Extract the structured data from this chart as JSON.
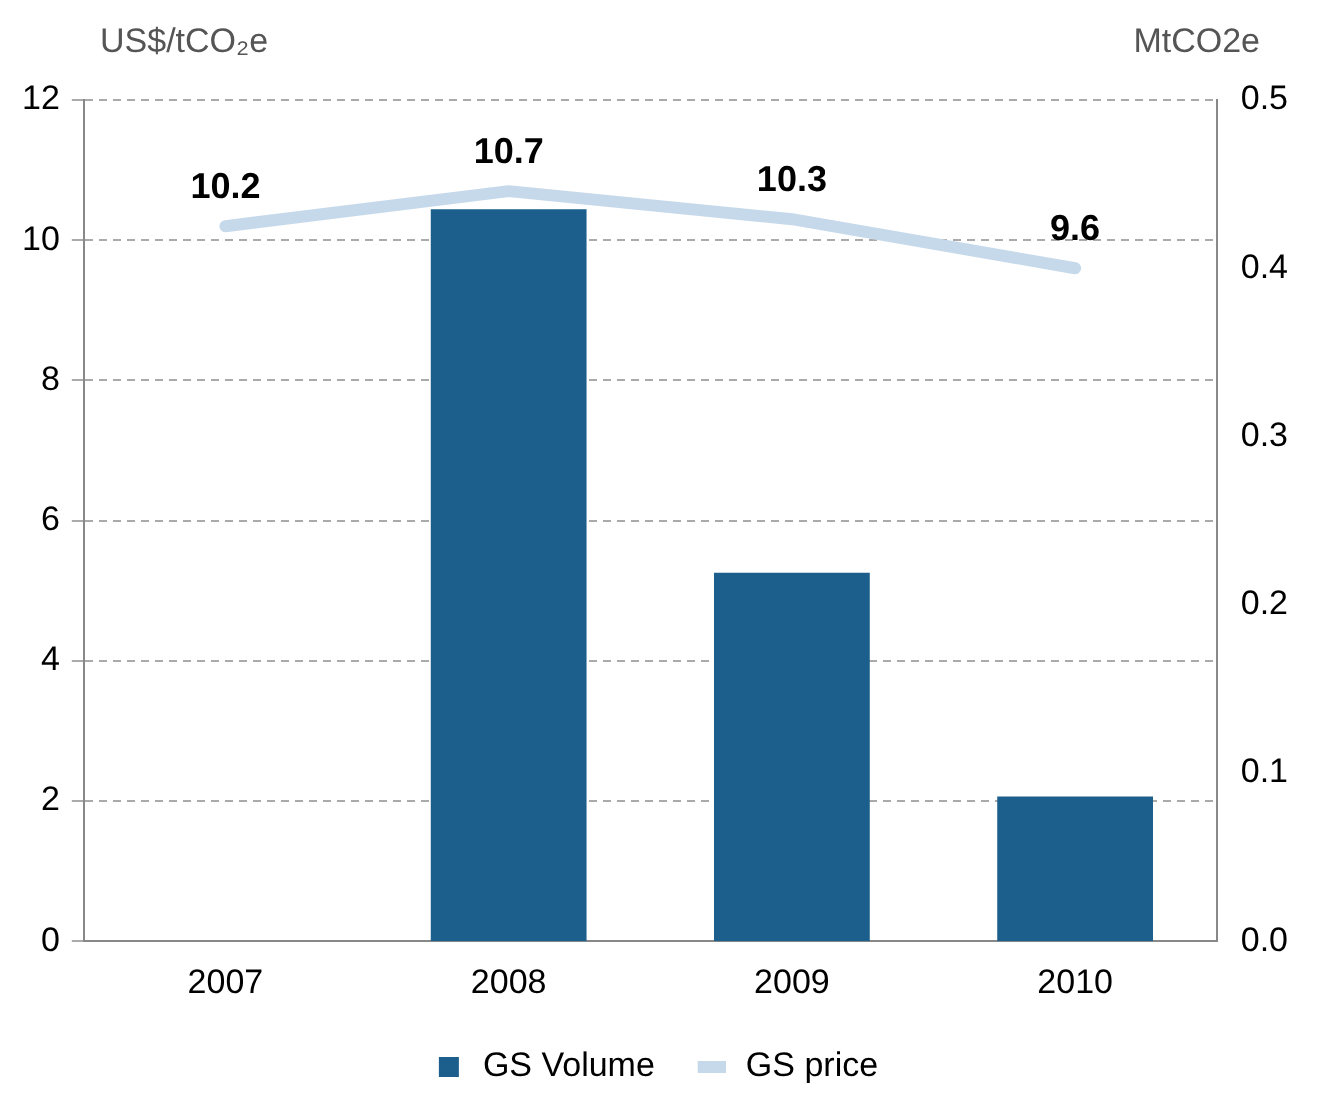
{
  "chart_data": {
    "type": "bar",
    "categories": [
      "2007",
      "2008",
      "2009",
      "2010"
    ],
    "ylabel": "US$/tCO₂e",
    "y2label": "MtCO2e",
    "series": [
      {
        "name": "GS Volume",
        "axis": "y2",
        "color": "#1c5f8c",
        "values": [
          null,
          0.435,
          0.219,
          0.086
        ]
      },
      {
        "name": "GS price",
        "type": "line",
        "color": "#c6d9ea",
        "values": [
          10.2,
          10.7,
          10.3,
          9.6
        ],
        "value_labels": [
          "10.2",
          "10.7",
          "10.3",
          "9.6"
        ]
      }
    ],
    "ylim": [
      0,
      12
    ],
    "yticks": [
      0,
      2,
      4,
      6,
      8,
      10,
      12
    ],
    "y2lim": [
      0,
      0.5
    ],
    "y2ticks": [
      {
        "value": 0,
        "label": "0.0"
      },
      {
        "value": 0.1,
        "label": "0.1"
      },
      {
        "value": 0.2,
        "label": "0.2"
      },
      {
        "value": 0.3,
        "label": "0.3"
      },
      {
        "value": 0.4,
        "label": "0.4"
      },
      {
        "value": 0.5,
        "label": "0.5"
      }
    ],
    "grid": "y",
    "legend": "bottom",
    "marker": "none"
  }
}
